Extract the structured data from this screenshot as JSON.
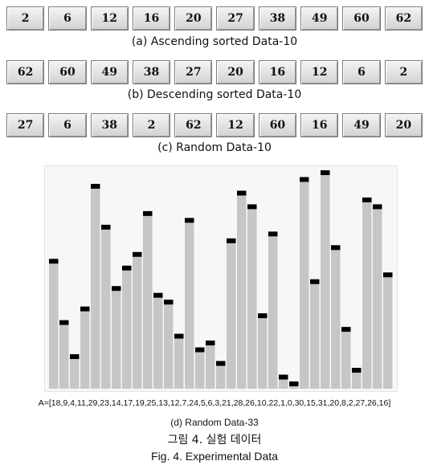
{
  "ascending": {
    "values": [
      "2",
      "6",
      "12",
      "16",
      "20",
      "27",
      "38",
      "49",
      "60",
      "62"
    ],
    "caption": "(a) Ascending sorted Data-10"
  },
  "descending": {
    "values": [
      "62",
      "60",
      "49",
      "38",
      "27",
      "20",
      "16",
      "12",
      "6",
      "2"
    ],
    "caption": "(b) Descending sorted Data-10"
  },
  "random10": {
    "values": [
      "27",
      "6",
      "38",
      "2",
      "62",
      "12",
      "60",
      "16",
      "49",
      "20"
    ],
    "caption": "(c) Random Data-10"
  },
  "chart_data": {
    "type": "bar",
    "values": [
      18,
      9,
      4,
      11,
      29,
      23,
      14,
      17,
      19,
      25,
      13,
      12,
      7,
      24,
      5,
      6,
      3,
      21,
      28,
      26,
      10,
      22,
      1,
      0,
      30,
      15,
      31,
      20,
      8,
      2,
      27,
      26,
      16
    ],
    "bar_color": "#c6c6c6",
    "marker_color": "#000000",
    "background": "#f7f7f7",
    "grid": false
  },
  "random33": {
    "array_text": "A=[18,9,4,11,29,23,14,17,19,25,13,12,7,24,5,6,3,21,28,26,10,22,1,0,30,15,31,20,8,2,27,26,16]",
    "caption": "(d) Random Data-33"
  },
  "figure": {
    "title_korean": "그림 4. 실험 데이터",
    "title_english": "Fig. 4. Experimental Data"
  }
}
